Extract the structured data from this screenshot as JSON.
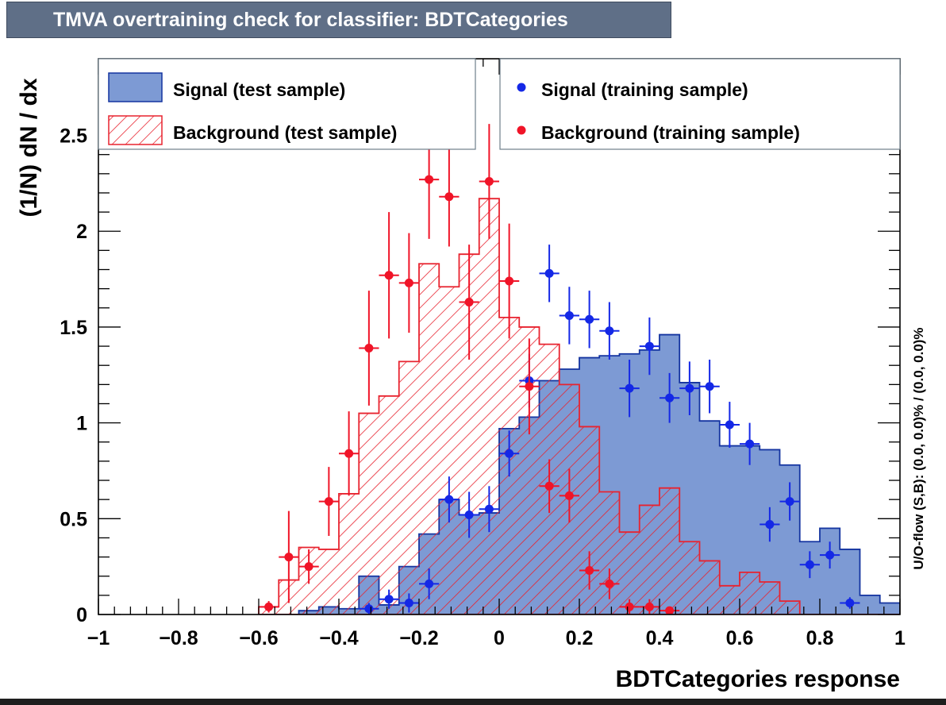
{
  "chart_data": {
    "type": "bar",
    "title": "TMVA overtraining check for classifier: BDTCategories",
    "xlabel": "BDTCategories response",
    "ylabel": "(1/N) dN / dx",
    "side_label": "U/O-flow (S,B): (0.0, 0.0)% / (0.0, 0.0)%",
    "xlim": [
      -1,
      1
    ],
    "ylim": [
      0,
      2.9
    ],
    "bin_start": -0.6,
    "bin_width": 0.05,
    "x_ticks": [
      -1,
      -0.8,
      -0.6,
      -0.4,
      -0.2,
      0,
      0.2,
      0.4,
      0.6,
      0.8,
      1
    ],
    "x_tick_labels": [
      "−1",
      "−0.8",
      "−0.6",
      "−0.4",
      "−0.2",
      "0",
      "0.2",
      "0.4",
      "0.6",
      "0.8",
      "1"
    ],
    "y_ticks": [
      0,
      0.5,
      1,
      1.5,
      2,
      2.5
    ],
    "y_tick_labels": [
      "0",
      "0.5",
      "1",
      "1.5",
      "2",
      "2.5"
    ],
    "legend": {
      "signal_test": "Signal (test sample)",
      "background_test": "Background (test sample)",
      "signal_train": "Signal (training sample)",
      "background_train": "Background (training sample)"
    },
    "colors": {
      "signal_fill": "#7d9ad4",
      "signal_line": "#1434a0",
      "background": "#e8232f",
      "signal_points": "#1428e6",
      "background_points": "#f01428"
    },
    "series": [
      {
        "name": "Signal (test sample)",
        "kind": "hist-filled",
        "values": [
          0,
          0,
          0.02,
          0.04,
          0.03,
          0.2,
          0.05,
          0.25,
          0.42,
          0.6,
          0.52,
          0.53,
          0.97,
          1.03,
          1.22,
          1.28,
          1.34,
          1.35,
          1.36,
          1.38,
          1.46,
          1.21,
          1.01,
          0.88,
          0.88,
          0.86,
          0.78,
          0.38,
          0.45,
          0.34,
          0.1,
          0.06
        ]
      },
      {
        "name": "Background (test sample)",
        "kind": "hist-hatched",
        "values": [
          0.04,
          0.18,
          0.35,
          0.34,
          0.63,
          1.05,
          1.14,
          1.32,
          1.83,
          1.71,
          1.88,
          2.17,
          1.55,
          1.5,
          1.41,
          1.2,
          0.98,
          0.64,
          0.43,
          0.57,
          0.66,
          0.38,
          0.28,
          0.15,
          0.22,
          0.17,
          0.07,
          0,
          0,
          0,
          0,
          0
        ]
      },
      {
        "name": "Signal (training sample)",
        "kind": "points",
        "x": [
          -0.325,
          -0.275,
          -0.225,
          -0.175,
          -0.125,
          -0.075,
          -0.025,
          0.025,
          0.075,
          0.125,
          0.175,
          0.225,
          0.275,
          0.325,
          0.375,
          0.425,
          0.475,
          0.525,
          0.575,
          0.625,
          0.675,
          0.725,
          0.775,
          0.825,
          0.875
        ],
        "y": [
          0.03,
          0.08,
          0.06,
          0.16,
          0.6,
          0.52,
          0.55,
          0.84,
          1.22,
          1.78,
          1.56,
          1.54,
          1.48,
          1.18,
          1.4,
          1.13,
          1.18,
          1.19,
          0.99,
          0.89,
          0.47,
          0.59,
          0.26,
          0.31,
          0.06
        ],
        "err": [
          0.03,
          0.05,
          0.05,
          0.08,
          0.12,
          0.12,
          0.12,
          0.12,
          0.14,
          0.15,
          0.15,
          0.15,
          0.15,
          0.15,
          0.15,
          0.13,
          0.14,
          0.14,
          0.12,
          0.11,
          0.09,
          0.1,
          0.07,
          0.07,
          0.03
        ]
      },
      {
        "name": "Background (training sample)",
        "kind": "points",
        "x": [
          -0.575,
          -0.525,
          -0.475,
          -0.425,
          -0.375,
          -0.325,
          -0.275,
          -0.225,
          -0.175,
          -0.125,
          -0.075,
          -0.025,
          0.025,
          0.075,
          0.125,
          0.175,
          0.225,
          0.275,
          0.325,
          0.375,
          0.425
        ],
        "y": [
          0.04,
          0.3,
          0.25,
          0.59,
          0.84,
          1.39,
          1.77,
          1.73,
          2.27,
          2.18,
          1.63,
          2.26,
          1.74,
          1.19,
          0.67,
          0.62,
          0.23,
          0.16,
          0.04,
          0.04,
          0.02
        ],
        "err": [
          0.03,
          0.24,
          0.09,
          0.18,
          0.22,
          0.3,
          0.33,
          0.26,
          0.31,
          0.26,
          0.3,
          0.3,
          0.3,
          0.25,
          0.14,
          0.14,
          0.1,
          0.08,
          0.04,
          0.04,
          0.02
        ]
      }
    ]
  }
}
